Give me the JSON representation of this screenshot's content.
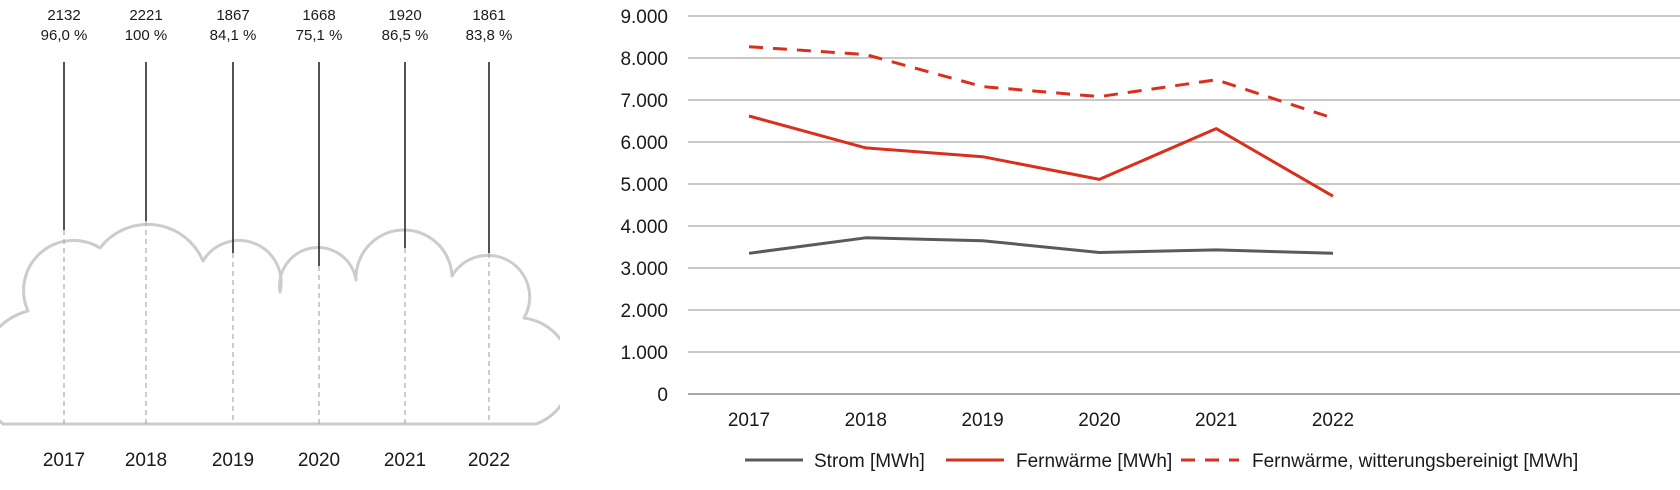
{
  "left_chart": {
    "years": [
      "2017",
      "2018",
      "2019",
      "2020",
      "2021",
      "2022"
    ],
    "values": [
      "2132",
      "2221",
      "1867",
      "1668",
      "1920",
      "1861"
    ],
    "percents": [
      "96,0 %",
      "100 %",
      "84,1 %",
      "75,1 %",
      "86,5 %",
      "83,8 %"
    ],
    "colors": {
      "outline": "#cccccc",
      "line": "#1a1a1a",
      "dash": "#aaaaaa"
    }
  },
  "chart_data": [
    {
      "type": "bar",
      "categories": [
        "2017",
        "2018",
        "2019",
        "2020",
        "2021",
        "2022"
      ],
      "values": [
        2132,
        2221,
        1867,
        1668,
        1920,
        1861
      ],
      "percent_labels": [
        "96,0 %",
        "100 %",
        "84,1 %",
        "75,1 %",
        "86,5 %",
        "83,8 %"
      ],
      "title": "",
      "xlabel": "",
      "ylabel": ""
    },
    {
      "type": "line",
      "categories": [
        "2017",
        "2018",
        "2019",
        "2020",
        "2021",
        "2022"
      ],
      "series": [
        {
          "name": "Strom [MWh]",
          "values": [
            3350,
            3720,
            3650,
            3370,
            3430,
            3350
          ],
          "color": "#5a5a5a",
          "style": "solid"
        },
        {
          "name": "Fernwärme [MWh]",
          "values": [
            6620,
            5860,
            5650,
            5110,
            6320,
            4710
          ],
          "color": "#d9301d",
          "style": "solid"
        },
        {
          "name": "Fernwärme, witterungsbereinigt [MWh]",
          "values": [
            8270,
            8080,
            7320,
            7080,
            7480,
            6570
          ],
          "color": "#d9301d",
          "style": "dashed"
        }
      ],
      "yticks": [
        "0",
        "1.000",
        "2.000",
        "3.000",
        "4.000",
        "5.000",
        "6.000",
        "7.000",
        "8.000",
        "9.000"
      ],
      "ylim": [
        0,
        9000
      ],
      "grid": true,
      "legend_position": "bottom",
      "title": "",
      "xlabel": "",
      "ylabel": ""
    }
  ]
}
